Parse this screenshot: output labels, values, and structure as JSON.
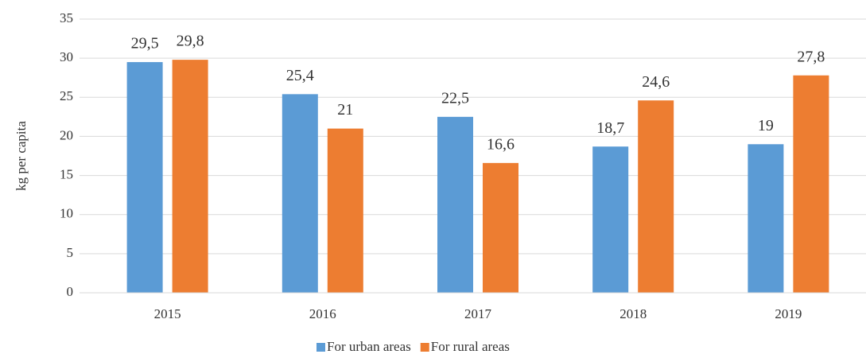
{
  "chart_data": {
    "type": "bar",
    "y_label": "kg per capita",
    "categories": [
      "2015",
      "2016",
      "2017",
      "2018",
      "2019"
    ],
    "series": [
      {
        "name": "For urban areas",
        "color": "#5b9bd5",
        "values": [
          29.5,
          25.4,
          22.5,
          18.7,
          19
        ],
        "value_labels": [
          "29,5",
          "25,4",
          "22,5",
          "18,7",
          "19"
        ]
      },
      {
        "name": "For rural areas",
        "color": "#ed7d31",
        "values": [
          29.8,
          21,
          16.6,
          24.6,
          27.8
        ],
        "value_labels": [
          "29,8",
          "21",
          "16,6",
          "24,6",
          "27,8"
        ]
      }
    ],
    "ylim": [
      0,
      35
    ],
    "yticks": [
      0,
      5,
      10,
      15,
      20,
      25,
      30,
      35
    ],
    "grid": true,
    "legend": "bottom"
  }
}
